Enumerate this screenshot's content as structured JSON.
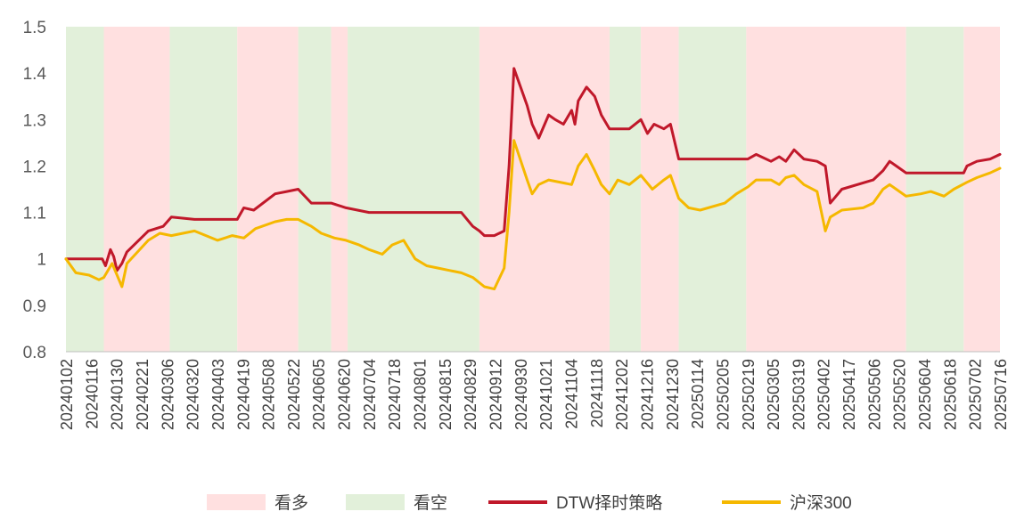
{
  "chart_data": {
    "type": "line",
    "title": "",
    "xlabel": "",
    "ylabel": "",
    "ylim": [
      0.8,
      1.5
    ],
    "y_ticks": [
      "0.8",
      "0.9",
      "1",
      "1.1",
      "1.2",
      "1.3",
      "1.4",
      "1.5"
    ],
    "grid": false,
    "legend_position": "bottom",
    "x_tick_labels": [
      "20240102",
      "20240116",
      "20240130",
      "20240221",
      "20240306",
      "20240320",
      "20240403",
      "20240419",
      "20240508",
      "20240522",
      "20240605",
      "20240620",
      "20240704",
      "20240718",
      "20240801",
      "20240815",
      "20240829",
      "20240912",
      "20240930",
      "20241021",
      "20241104",
      "20241118",
      "20241202",
      "20241216",
      "20241230",
      "20250114",
      "20250205",
      "20250219",
      "20250305",
      "20250319",
      "20250402",
      "20250417",
      "20250506",
      "20250520",
      "20250604",
      "20250618",
      "20250702",
      "20250716"
    ],
    "regimes": [
      {
        "start": "20240102",
        "end": "20240125",
        "state": "看空"
      },
      {
        "start": "20240125",
        "end": "20240305",
        "state": "看多"
      },
      {
        "start": "20240305",
        "end": "20240415",
        "state": "看空"
      },
      {
        "start": "20240415",
        "end": "20240522",
        "state": "看多"
      },
      {
        "start": "20240522",
        "end": "20240611",
        "state": "看空"
      },
      {
        "start": "20240611",
        "end": "20240621",
        "state": "看多"
      },
      {
        "start": "20240621",
        "end": "20240909",
        "state": "看空"
      },
      {
        "start": "20240909",
        "end": "20241127",
        "state": "看多"
      },
      {
        "start": "20241127",
        "end": "20241216",
        "state": "看空"
      },
      {
        "start": "20241216",
        "end": "20250108",
        "state": "看多"
      },
      {
        "start": "20250108",
        "end": "20250218",
        "state": "看空"
      },
      {
        "start": "20250218",
        "end": "20250526",
        "state": "看多"
      },
      {
        "start": "20250526",
        "end": "20250630",
        "state": "看空"
      },
      {
        "start": "20250630",
        "end": "20250722",
        "state": "看多"
      }
    ],
    "regime_colors": {
      "看多": "#ffe0e0",
      "看空": "#e2f0da"
    },
    "series": [
      {
        "name": "DTW择时策略",
        "color": "#c0182a",
        "x": [
          "20240102",
          "20240116",
          "20240124",
          "20240126",
          "20240129",
          "20240131",
          "20240202",
          "20240205",
          "20240208",
          "20240221",
          "20240301",
          "20240306",
          "20240320",
          "20240403",
          "20240415",
          "20240419",
          "20240425",
          "20240508",
          "20240515",
          "20240522",
          "20240530",
          "20240605",
          "20240611",
          "20240620",
          "20240704",
          "20240718",
          "20240801",
          "20240815",
          "20240829",
          "20240905",
          "20240909",
          "20240912",
          "20240918",
          "20240924",
          "20240927",
          "20240930",
          "20241008",
          "20241011",
          "20241015",
          "20241021",
          "20241025",
          "20241030",
          "20241104",
          "20241106",
          "20241108",
          "20241113",
          "20241118",
          "20241122",
          "20241127",
          "20241202",
          "20241209",
          "20241216",
          "20241220",
          "20241224",
          "20241230",
          "20250103",
          "20250108",
          "20250114",
          "20250205",
          "20250219",
          "20250224",
          "20250305",
          "20250310",
          "20250314",
          "20250319",
          "20250325",
          "20250402",
          "20250407",
          "20250410",
          "20250417",
          "20250506",
          "20250512",
          "20250516",
          "20250520",
          "20250526",
          "20250604",
          "20250618",
          "20250624",
          "20250630",
          "20250702",
          "20250708",
          "20250716",
          "20250722"
        ],
        "values": [
          1.0,
          1.0,
          1.0,
          0.985,
          1.02,
          1.005,
          0.975,
          0.99,
          1.015,
          1.06,
          1.07,
          1.09,
          1.085,
          1.085,
          1.085,
          1.11,
          1.105,
          1.14,
          1.145,
          1.15,
          1.12,
          1.12,
          1.12,
          1.11,
          1.1,
          1.1,
          1.1,
          1.1,
          1.1,
          1.07,
          1.06,
          1.05,
          1.05,
          1.06,
          1.2,
          1.41,
          1.33,
          1.29,
          1.26,
          1.31,
          1.3,
          1.29,
          1.32,
          1.29,
          1.34,
          1.37,
          1.35,
          1.31,
          1.28,
          1.28,
          1.28,
          1.3,
          1.27,
          1.29,
          1.28,
          1.29,
          1.215,
          1.215,
          1.215,
          1.215,
          1.225,
          1.21,
          1.22,
          1.21,
          1.235,
          1.215,
          1.21,
          1.2,
          1.12,
          1.15,
          1.17,
          1.19,
          1.21,
          1.2,
          1.185,
          1.185,
          1.185,
          1.185,
          1.185,
          1.2,
          1.21,
          1.215,
          1.225
        ]
      },
      {
        "name": "沪深300",
        "color": "#f5b800",
        "x": [
          "20240102",
          "20240108",
          "20240116",
          "20240122",
          "20240125",
          "20240130",
          "20240205",
          "20240208",
          "20240221",
          "20240228",
          "20240306",
          "20240320",
          "20240403",
          "20240412",
          "20240419",
          "20240426",
          "20240508",
          "20240515",
          "20240522",
          "20240530",
          "20240605",
          "20240613",
          "20240620",
          "20240628",
          "20240704",
          "20240712",
          "20240718",
          "20240725",
          "20240801",
          "20240808",
          "20240815",
          "20240822",
          "20240829",
          "20240905",
          "20240912",
          "20240918",
          "20240924",
          "20240927",
          "20240930",
          "20241008",
          "20241011",
          "20241015",
          "20241021",
          "20241104",
          "20241108",
          "20241113",
          "20241118",
          "20241122",
          "20241127",
          "20241202",
          "20241209",
          "20241216",
          "20241223",
          "20241230",
          "20250103",
          "20250108",
          "20250114",
          "20250121",
          "20250205",
          "20250212",
          "20250219",
          "20250224",
          "20250305",
          "20250310",
          "20250314",
          "20250319",
          "20250325",
          "20250402",
          "20250407",
          "20250410",
          "20250417",
          "20250430",
          "20250506",
          "20250512",
          "20250516",
          "20250520",
          "20250526",
          "20250604",
          "20250610",
          "20250618",
          "20250624",
          "20250702",
          "20250708",
          "20250716",
          "20250722"
        ],
        "values": [
          1.0,
          0.97,
          0.965,
          0.955,
          0.96,
          0.99,
          0.94,
          0.99,
          1.04,
          1.055,
          1.05,
          1.06,
          1.04,
          1.05,
          1.045,
          1.065,
          1.08,
          1.085,
          1.085,
          1.07,
          1.055,
          1.045,
          1.04,
          1.03,
          1.02,
          1.01,
          1.03,
          1.04,
          1.0,
          0.985,
          0.98,
          0.975,
          0.97,
          0.96,
          0.94,
          0.935,
          0.98,
          1.1,
          1.255,
          1.17,
          1.14,
          1.16,
          1.17,
          1.16,
          1.2,
          1.225,
          1.19,
          1.16,
          1.14,
          1.17,
          1.16,
          1.18,
          1.15,
          1.17,
          1.18,
          1.13,
          1.11,
          1.105,
          1.12,
          1.14,
          1.155,
          1.17,
          1.17,
          1.16,
          1.175,
          1.18,
          1.16,
          1.145,
          1.06,
          1.09,
          1.105,
          1.11,
          1.12,
          1.15,
          1.16,
          1.15,
          1.135,
          1.14,
          1.145,
          1.135,
          1.15,
          1.165,
          1.175,
          1.185,
          1.195
        ]
      }
    ],
    "legend": [
      {
        "label": "看多",
        "kind": "patch",
        "color": "#ffe0e0"
      },
      {
        "label": "看空",
        "kind": "patch",
        "color": "#e2f0da"
      },
      {
        "label": "DTW择时策略",
        "kind": "line",
        "color": "#c0182a"
      },
      {
        "label": "沪深300",
        "kind": "line",
        "color": "#f5b800"
      }
    ]
  }
}
